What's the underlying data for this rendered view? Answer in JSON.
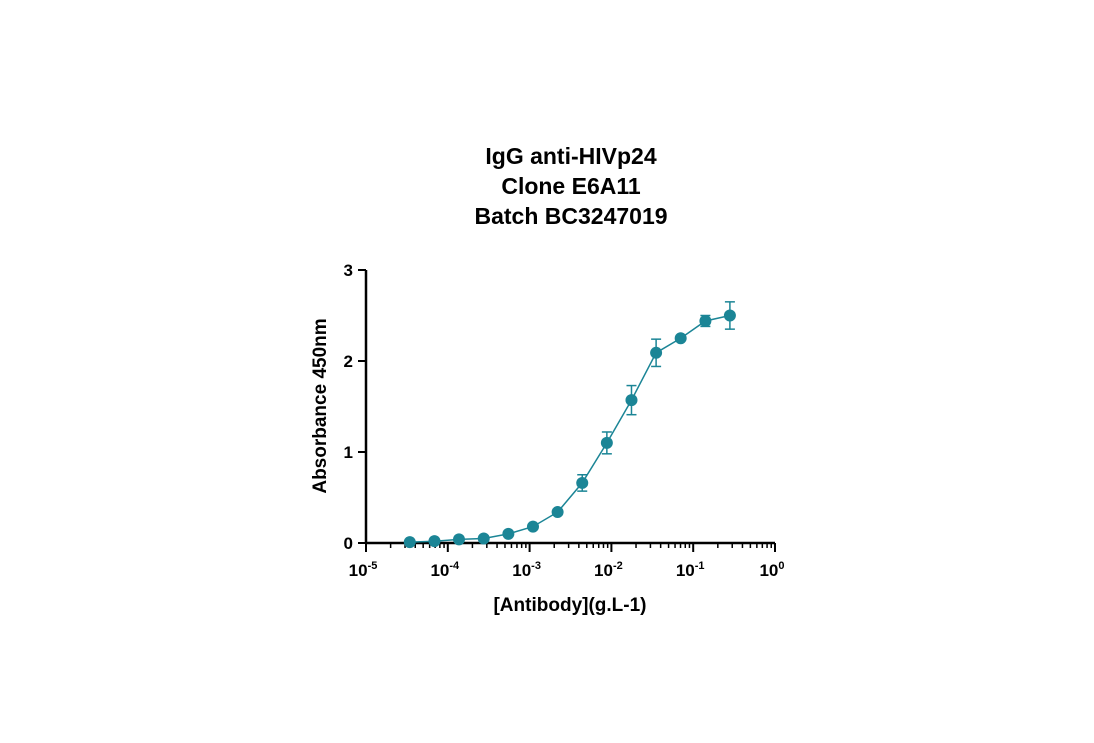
{
  "chart_data": {
    "type": "line",
    "title_lines": [
      "IgG anti-HIVp24",
      "Clone E6A11",
      "Batch BC3247019"
    ],
    "xlabel": "[Antibody](g.L-1)",
    "ylabel": "Absorbance 450nm",
    "x_scale": "log",
    "xlim": [
      1e-05,
      1
    ],
    "ylim": [
      0,
      3
    ],
    "x_ticks": [
      {
        "value": 1e-05,
        "base": "10",
        "exp": "-5"
      },
      {
        "value": 0.0001,
        "base": "10",
        "exp": "-4"
      },
      {
        "value": 0.001,
        "base": "10",
        "exp": "-3"
      },
      {
        "value": 0.01,
        "base": "10",
        "exp": "-2"
      },
      {
        "value": 0.1,
        "base": "10",
        "exp": "-1"
      },
      {
        "value": 1,
        "base": "10",
        "exp": "0"
      }
    ],
    "y_ticks": [
      {
        "value": 0,
        "label": "0"
      },
      {
        "value": 1,
        "label": "1"
      },
      {
        "value": 2,
        "label": "2"
      },
      {
        "value": 3,
        "label": "3"
      }
    ],
    "grid": false,
    "legend": "none",
    "series": [
      {
        "color": "#1b8596",
        "marker": "circle",
        "x": [
          3.43e-05,
          6.87e-05,
          0.000137,
          0.000275,
          0.00055,
          0.0011,
          0.0022,
          0.0044,
          0.0088,
          0.0176,
          0.0352,
          0.0703,
          0.141,
          0.281
        ],
        "y": [
          0.01,
          0.02,
          0.04,
          0.05,
          0.1,
          0.18,
          0.34,
          0.66,
          1.1,
          1.57,
          2.09,
          2.25,
          2.44,
          2.5
        ],
        "error": [
          0.0,
          0.0,
          0.0,
          0.0,
          0.02,
          0.02,
          0.03,
          0.09,
          0.12,
          0.16,
          0.15,
          0.02,
          0.06,
          0.15
        ]
      }
    ]
  }
}
